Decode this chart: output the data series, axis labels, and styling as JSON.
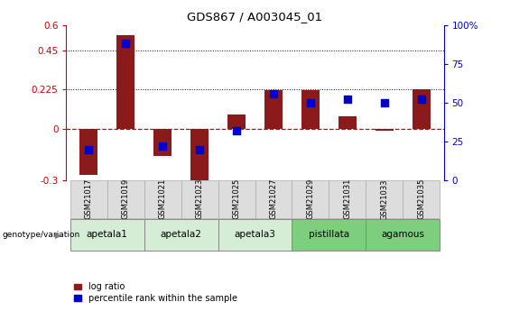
{
  "title": "GDS867 / A003045_01",
  "samples": [
    "GSM21017",
    "GSM21019",
    "GSM21021",
    "GSM21023",
    "GSM21025",
    "GSM21027",
    "GSM21029",
    "GSM21031",
    "GSM21033",
    "GSM21035"
  ],
  "log_ratio": [
    -0.27,
    0.54,
    -0.16,
    -0.34,
    0.08,
    0.22,
    0.22,
    0.07,
    -0.01,
    0.225
  ],
  "percentile_rank": [
    20,
    88,
    22,
    20,
    32,
    56,
    50,
    52,
    50,
    52
  ],
  "groups": [
    {
      "label": "apetala1",
      "color": "#d4edd4",
      "start": 0,
      "end": 1
    },
    {
      "label": "apetala2",
      "color": "#d4edd4",
      "start": 2,
      "end": 3
    },
    {
      "label": "apetala3",
      "color": "#d4edd4",
      "start": 4,
      "end": 5
    },
    {
      "label": "pistillata",
      "color": "#7dce7d",
      "start": 6,
      "end": 7
    },
    {
      "label": "agamous",
      "color": "#7dce7d",
      "start": 8,
      "end": 9
    }
  ],
  "ylim_left": [
    -0.3,
    0.6
  ],
  "ylim_right": [
    0,
    100
  ],
  "yticks_left": [
    -0.3,
    0.0,
    0.225,
    0.45,
    0.6
  ],
  "ytick_labels_left": [
    "-0.3",
    "0",
    "0.225",
    "0.45",
    "0.6"
  ],
  "yticks_right": [
    0,
    25,
    50,
    75,
    100
  ],
  "ytick_labels_right": [
    "0",
    "25",
    "50",
    "75",
    "100%"
  ],
  "hlines_dotted": [
    0.45,
    0.225
  ],
  "bar_color": "#8B1A1A",
  "dot_color": "#0000CC",
  "zero_line_color": "#CC0000",
  "bar_width": 0.5,
  "dot_size": 28,
  "label_log": "log ratio",
  "label_pct": "percentile rank within the sample",
  "genotype_label": "genotype/variation"
}
